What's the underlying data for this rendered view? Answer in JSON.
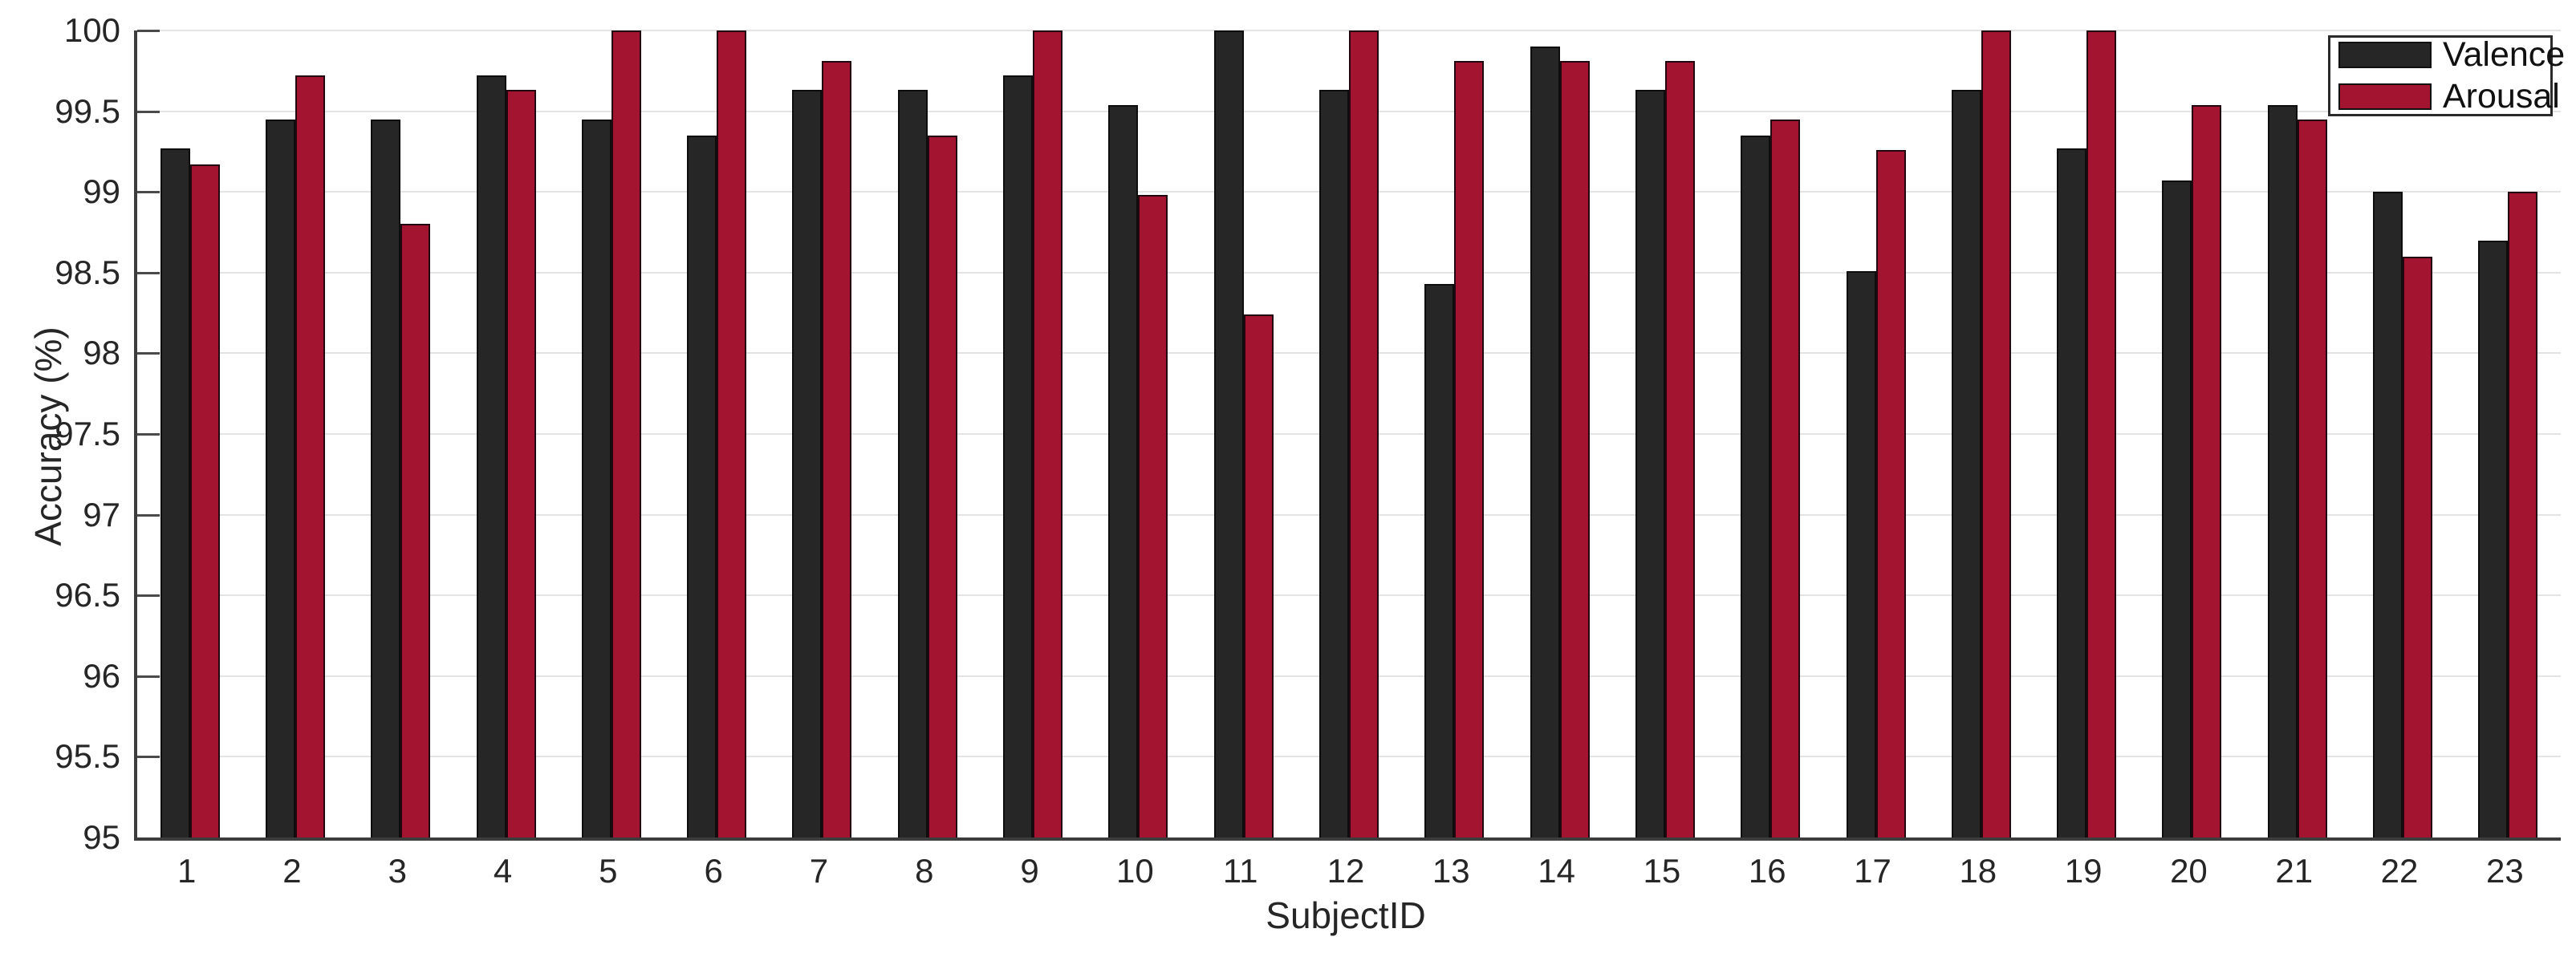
{
  "chart_data": {
    "type": "bar",
    "title": "",
    "xlabel": "SubjectID",
    "ylabel": "Accuracy (%)",
    "ylim": [
      95,
      100
    ],
    "ytick_labels": [
      "95",
      "95.5",
      "96",
      "96.5",
      "97",
      "97.5",
      "98",
      "98.5",
      "99",
      "99.5",
      "100"
    ],
    "grid": "horizontal",
    "legend_position": "top-right",
    "categories": [
      "1",
      "2",
      "3",
      "4",
      "5",
      "6",
      "7",
      "8",
      "9",
      "10",
      "11",
      "12",
      "13",
      "14",
      "15",
      "16",
      "17",
      "18",
      "19",
      "20",
      "21",
      "22",
      "23"
    ],
    "series": [
      {
        "name": "Valence",
        "color": "#262626",
        "edge_color": "#0d0d0d",
        "values": [
          99.27,
          99.45,
          99.45,
          99.72,
          99.45,
          99.35,
          99.63,
          99.63,
          99.72,
          99.54,
          100.0,
          99.63,
          98.43,
          99.9,
          99.63,
          99.35,
          98.51,
          99.63,
          99.27,
          99.07,
          99.54,
          99.0,
          98.7
        ]
      },
      {
        "name": "Arousal",
        "color": "#A2142F",
        "edge_color": "#230710",
        "values": [
          99.17,
          99.72,
          98.8,
          99.63,
          100.0,
          100.0,
          99.81,
          99.35,
          100.0,
          98.98,
          98.24,
          100.0,
          99.81,
          99.81,
          99.81,
          99.45,
          99.26,
          100.0,
          100.0,
          99.54,
          99.45,
          98.6,
          99.0
        ]
      }
    ],
    "colors": {
      "grid": "#e3e3e3",
      "axis": "#3d3d3d",
      "tick": "#4a4a4a",
      "text": "#262626",
      "background": "#ffffff"
    }
  }
}
